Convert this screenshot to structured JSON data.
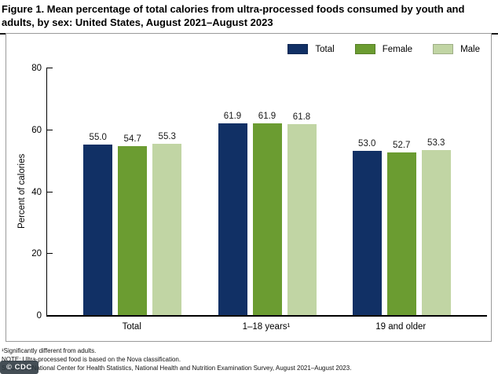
{
  "title": "Figure 1. Mean percentage of total calories from ultra-processed foods consumed by youth and adults, by sex: United States, August 2021–August 2023",
  "watermark": "© CDC",
  "chart_data": {
    "type": "bar",
    "title": "Mean percentage of total calories from ultra-processed foods consumed by youth and adults, by sex: United States, August 2021–August 2023",
    "ylabel": "Percent of calories",
    "xlabel": "",
    "ylim": [
      0,
      80
    ],
    "yticks": [
      0,
      20,
      40,
      60,
      80
    ],
    "grid": false,
    "legend_position": "top-right",
    "categories": [
      "Total",
      "1–18 years¹",
      "19 and older"
    ],
    "series": [
      {
        "name": "Total",
        "color": "#113065",
        "values": [
          55.0,
          61.9,
          53.0
        ]
      },
      {
        "name": "Female",
        "color": "#6B9C31",
        "values": [
          54.7,
          61.9,
          52.7
        ]
      },
      {
        "name": "Male",
        "color": "#C1D5A4",
        "values": [
          55.3,
          61.8,
          53.3
        ]
      }
    ]
  },
  "footnotes": [
    "¹Significantly different from adults.",
    "NOTE: Ultra-processed food is based on the Nova classification.",
    "SOURCE: National Center for Health Statistics, National Health and Nutrition Examination Survey, August 2021–August 2023."
  ]
}
